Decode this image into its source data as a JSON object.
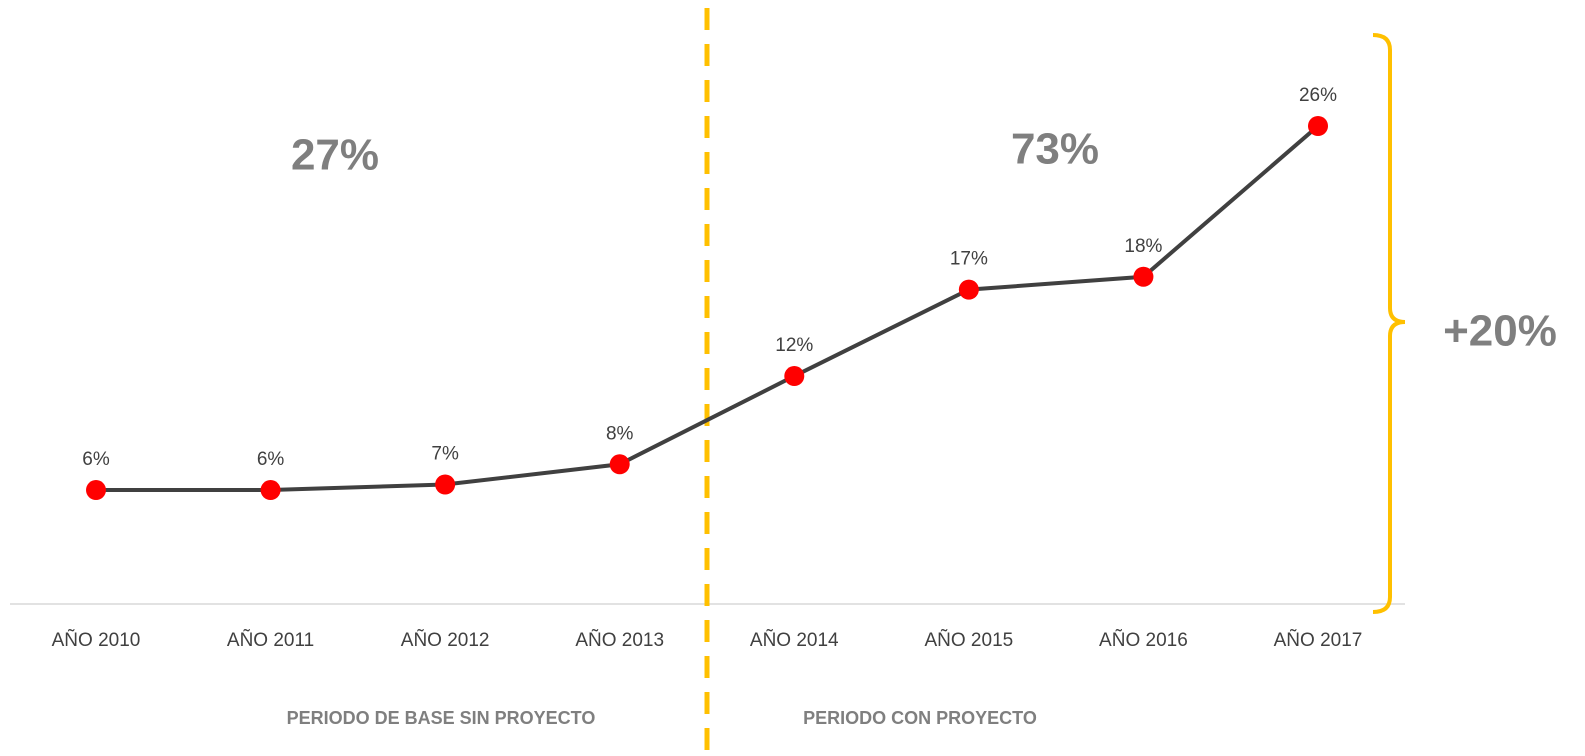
{
  "chart_data": {
    "type": "line",
    "categories": [
      "AÑO 2010",
      "AÑO 2011",
      "AÑO 2012",
      "AÑO 2013",
      "AÑO 2014",
      "AÑO 2015",
      "AÑO 2016",
      "AÑO 2017"
    ],
    "values": [
      6.2,
      6.2,
      6.5,
      7.6,
      12.4,
      17.1,
      17.8,
      26
    ],
    "value_labels": [
      "6%",
      "6%",
      "7%",
      "8%",
      "12%",
      "17%",
      "18%",
      "26%"
    ],
    "color": "#404040",
    "marker_color": "#ff0000",
    "divider_color": "#ffc000",
    "ylim": [
      0,
      30
    ],
    "annotations": [
      "27%",
      "73%",
      "+20%"
    ],
    "period_labels": [
      "PERIODO DE BASE SIN PROYECTO",
      "PERIODO CON PROYECTO"
    ]
  }
}
